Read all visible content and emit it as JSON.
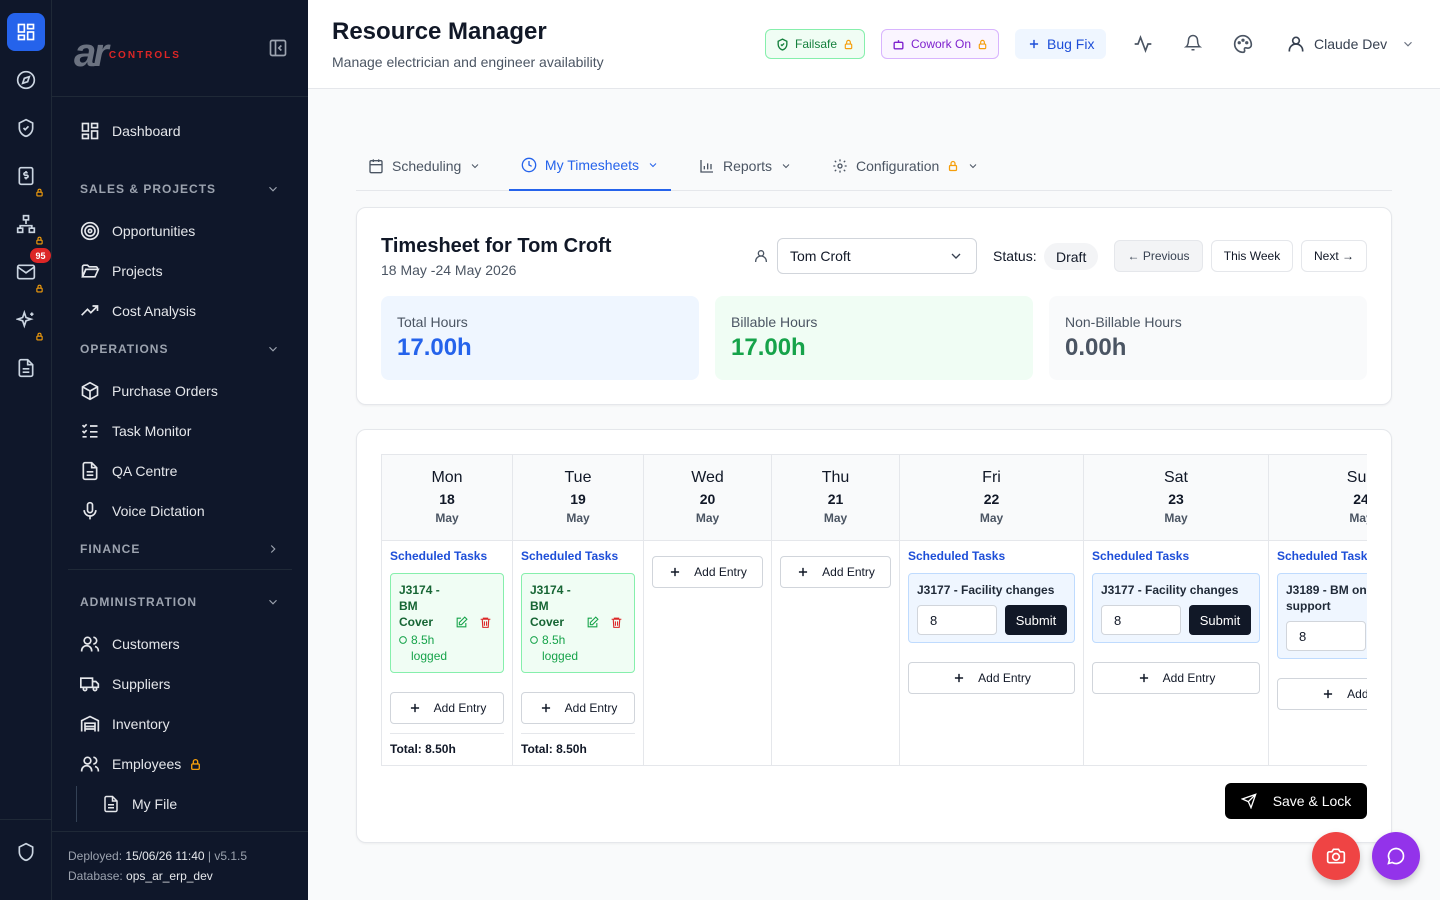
{
  "colors": {
    "accent": "#2563eb",
    "sidebar_bg": "#0f172a",
    "success": "#16a34a",
    "danger": "#dc2626",
    "lock": "#f59e0b",
    "purple": "#9333ea"
  },
  "rail": {
    "items": [
      "dashboard-icon",
      "compass-icon",
      "shield-check-icon",
      "dollar-file-icon",
      "sitemap-icon",
      "mail-icon",
      "sparkles-icon",
      "document-icon"
    ],
    "mail_badge": "95"
  },
  "sidebar": {
    "items": {
      "dashboard": "Dashboard",
      "opportunities": "Opportunities",
      "projects": "Projects",
      "cost_analysis": "Cost Analysis",
      "purchase_orders": "Purchase Orders",
      "task_monitor": "Task Monitor",
      "qa_centre": "QA Centre",
      "voice_dictation": "Voice Dictation",
      "customers": "Customers",
      "suppliers": "Suppliers",
      "inventory": "Inventory",
      "employees": "Employees",
      "my_file": "My File"
    },
    "sections": {
      "sales": "SALES & PROJECTS",
      "operations": "OPERATIONS",
      "finance": "FINANCE",
      "administration": "ADMINISTRATION"
    },
    "footer": {
      "deployed_label": "Deployed:",
      "deployed_value": "15/06/26 11:40",
      "version": "| v5.1.5",
      "database_label": "Database:",
      "database_value": "ops_ar_erp_dev"
    }
  },
  "header": {
    "title": "Resource Manager",
    "subtitle": "Manage electrician and engineer availability",
    "failsafe": "Failsafe",
    "cowork": "Cowork On",
    "bugfix": "Bug Fix",
    "user": "Claude Dev"
  },
  "tabs": {
    "scheduling": "Scheduling",
    "timesheets": "My Timesheets",
    "reports": "Reports",
    "configuration": "Configuration"
  },
  "timesheet": {
    "title": "Timesheet for Tom Croft",
    "range": "18 May -24 May 2026",
    "employee": "Tom Croft",
    "status_label": "Status:",
    "status": "Draft",
    "prev": "← Previous",
    "this_week": "This Week",
    "next": "Next →",
    "stats": {
      "total_label": "Total Hours",
      "total": "17.00h",
      "billable_label": "Billable Hours",
      "billable": "17.00h",
      "nonbillable_label": "Non-Billable Hours",
      "nonbillable": "0.00h"
    }
  },
  "days": {
    "mon": {
      "d": "Mon",
      "n": "18",
      "m": "May",
      "sched": "Scheduled Tasks",
      "task": "J3174 - BM Cover",
      "logged": "8.5h logged",
      "add": "Add Entry",
      "total": "Total: 8.50h"
    },
    "tue": {
      "d": "Tue",
      "n": "19",
      "m": "May",
      "sched": "Scheduled Tasks",
      "task": "J3174 - BM Cover",
      "logged": "8.5h logged",
      "add": "Add Entry",
      "total": "Total: 8.50h"
    },
    "wed": {
      "d": "Wed",
      "n": "20",
      "m": "May",
      "add": "Add Entry"
    },
    "thu": {
      "d": "Thu",
      "n": "21",
      "m": "May",
      "add": "Add Entry"
    },
    "fri": {
      "d": "Fri",
      "n": "22",
      "m": "May",
      "sched": "Scheduled Tasks",
      "task": "J3177 - Facility changes",
      "hours": "8",
      "submit": "Submit",
      "add": "Add Entry"
    },
    "sat": {
      "d": "Sat",
      "n": "23",
      "m": "May",
      "sched": "Scheduled Tasks",
      "task": "J3177 - Facility changes",
      "hours": "8",
      "submit": "Submit",
      "add": "Add Entry"
    },
    "sun": {
      "d": "Sun",
      "n": "24",
      "m": "May",
      "sched": "Scheduled Tasks",
      "task": "J3189 - BM on support",
      "hours": "8",
      "add": "Add Entry"
    }
  },
  "save_lock": "Save & Lock"
}
